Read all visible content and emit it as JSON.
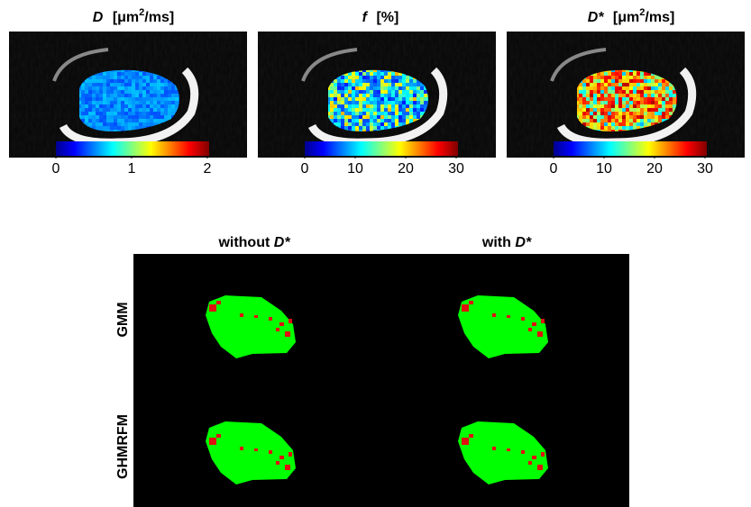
{
  "panels": [
    {
      "title": {
        "symbol": "D",
        "unit_open": "[μm",
        "unit_sup": "2",
        "unit_close": "/ms]"
      },
      "colorbar_ticks": [
        0,
        1,
        2
      ]
    },
    {
      "title": {
        "symbol": "f",
        "unit_open": "[%]"
      },
      "colorbar_ticks": [
        0,
        10,
        20,
        30
      ]
    },
    {
      "title": {
        "symbol": "D*",
        "unit_open": "[μm",
        "unit_sup": "2",
        "unit_close": "/ms]"
      },
      "colorbar_ticks": [
        0,
        10,
        20,
        30
      ]
    }
  ],
  "segmentation": {
    "columns": [
      {
        "text": "without",
        "symbol": "D*"
      },
      {
        "text": "with",
        "symbol": "D*"
      }
    ],
    "rows": [
      "GMM",
      "GHMRFM"
    ]
  }
}
